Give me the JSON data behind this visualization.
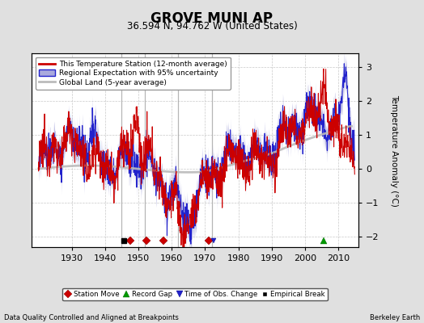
{
  "title": "GROVE MUNI AP",
  "subtitle": "36.594 N, 94.762 W (United States)",
  "ylabel": "Temperature Anomaly (°C)",
  "xlabel_bottom_left": "Data Quality Controlled and Aligned at Breakpoints",
  "xlabel_bottom_right": "Berkeley Earth",
  "ylim": [
    -2.3,
    3.4
  ],
  "xlim": [
    1918,
    2016
  ],
  "yticks": [
    -2,
    -1,
    0,
    1,
    2,
    3
  ],
  "xticks": [
    1930,
    1940,
    1950,
    1960,
    1970,
    1980,
    1990,
    2000,
    2010
  ],
  "vertical_lines": [
    1945,
    1952,
    1962,
    1972
  ],
  "station_moves": [
    1947.5,
    1952.5,
    1957.5,
    1971.0
  ],
  "empirical_breaks": [
    1945.5
  ],
  "record_gaps": [
    2005.5
  ],
  "time_obs_changes": [
    1972.5
  ],
  "background_color": "#e0e0e0",
  "plot_bg_color": "#ffffff",
  "grid_color": "#bbbbbb",
  "red_line_color": "#cc0000",
  "blue_line_color": "#2222cc",
  "blue_fill_color": "#aaaadd",
  "gray_line_color": "#bbbbbb",
  "seed": 12345
}
